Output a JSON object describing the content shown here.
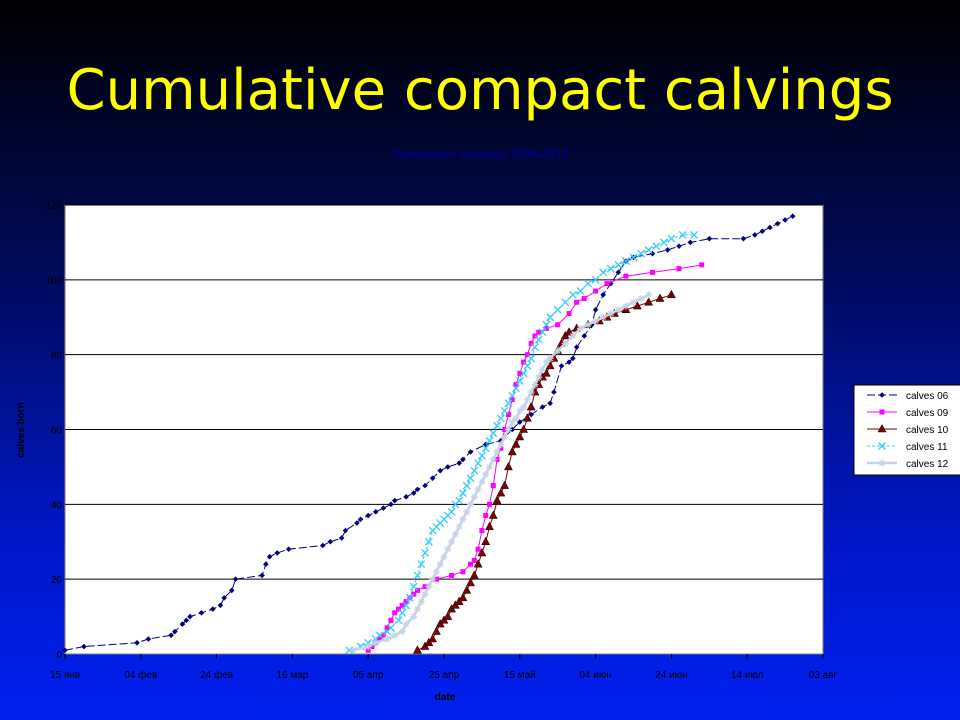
{
  "slide": {
    "title": "Cumulative compact calvings"
  },
  "chart_data": {
    "type": "line",
    "title": "Cumulative calvings 2006-2012",
    "xlabel": "date",
    "ylabel": "calves born",
    "x_tick_labels": [
      "15 янв",
      "04 фев",
      "24 фев",
      "16 мар",
      "05 апр",
      "25 апр",
      "15 май",
      "04 июн",
      "24 июн",
      "14 июл",
      "03 авг"
    ],
    "x_tick_days": [
      0,
      20,
      40,
      60,
      80,
      100,
      120,
      140,
      160,
      180,
      200
    ],
    "xlim": [
      0,
      200
    ],
    "ylim": [
      0,
      120
    ],
    "yticks": [
      0,
      20,
      40,
      60,
      80,
      100,
      120
    ],
    "grid": "horizontal",
    "legend_position": "right",
    "background": "#ffffff",
    "series": [
      {
        "name": "calves 06",
        "color": "#000080",
        "marker": "diamond",
        "dash": "8,3",
        "points": [
          [
            0,
            1
          ],
          [
            5,
            2
          ],
          [
            19,
            3
          ],
          [
            22,
            4
          ],
          [
            28,
            5
          ],
          [
            29,
            6
          ],
          [
            31,
            8
          ],
          [
            32,
            9
          ],
          [
            33,
            10
          ],
          [
            36,
            11
          ],
          [
            39,
            12
          ],
          [
            41,
            13
          ],
          [
            42,
            15
          ],
          [
            44,
            17
          ],
          [
            45,
            20
          ],
          [
            52,
            21
          ],
          [
            53,
            24
          ],
          [
            54,
            26
          ],
          [
            56,
            27
          ],
          [
            59,
            28
          ],
          [
            68,
            29
          ],
          [
            70,
            30
          ],
          [
            73,
            31
          ],
          [
            74,
            33
          ],
          [
            77,
            35
          ],
          [
            78,
            36
          ],
          [
            80,
            37
          ],
          [
            82,
            38
          ],
          [
            84,
            39
          ],
          [
            86,
            40
          ],
          [
            87,
            41
          ],
          [
            90,
            42
          ],
          [
            92,
            43
          ],
          [
            93,
            44
          ],
          [
            95,
            45
          ],
          [
            97,
            47
          ],
          [
            99,
            49
          ],
          [
            101,
            50
          ],
          [
            104,
            51
          ],
          [
            105,
            52
          ],
          [
            107,
            54
          ],
          [
            111,
            56
          ],
          [
            115,
            57
          ],
          [
            118,
            60
          ],
          [
            120,
            62
          ],
          [
            123,
            64
          ],
          [
            126,
            66
          ],
          [
            128,
            67
          ],
          [
            129,
            70
          ],
          [
            131,
            77
          ],
          [
            133,
            78
          ],
          [
            134,
            79
          ],
          [
            135,
            82
          ],
          [
            137,
            85
          ],
          [
            139,
            88
          ],
          [
            140,
            92
          ],
          [
            142,
            96
          ],
          [
            144,
            99
          ],
          [
            146,
            102
          ],
          [
            148,
            105
          ],
          [
            150,
            106
          ],
          [
            155,
            107
          ],
          [
            159,
            108
          ],
          [
            162,
            109
          ],
          [
            165,
            110
          ],
          [
            170,
            111
          ],
          [
            179,
            111
          ],
          [
            182,
            112
          ],
          [
            184,
            113
          ],
          [
            186,
            114
          ],
          [
            188,
            115
          ],
          [
            190,
            116
          ],
          [
            192,
            117
          ]
        ]
      },
      {
        "name": "calves 09",
        "color": "#ff00ff",
        "marker": "square",
        "dash": "",
        "points": [
          [
            80,
            1
          ],
          [
            81,
            2
          ],
          [
            82,
            3
          ],
          [
            83,
            4
          ],
          [
            84,
            5
          ],
          [
            85,
            7
          ],
          [
            86,
            9
          ],
          [
            87,
            11
          ],
          [
            88,
            12
          ],
          [
            89,
            13
          ],
          [
            90,
            14
          ],
          [
            91,
            15
          ],
          [
            92,
            16
          ],
          [
            93,
            17
          ],
          [
            95,
            18
          ],
          [
            98,
            20
          ],
          [
            102,
            21
          ],
          [
            105,
            22
          ],
          [
            107,
            24
          ],
          [
            108,
            25
          ],
          [
            109,
            28
          ],
          [
            110,
            33
          ],
          [
            111,
            37
          ],
          [
            112,
            40
          ],
          [
            113,
            45
          ],
          [
            114,
            52
          ],
          [
            115,
            55
          ],
          [
            116,
            60
          ],
          [
            117,
            64
          ],
          [
            118,
            68
          ],
          [
            119,
            72
          ],
          [
            120,
            75
          ],
          [
            121,
            78
          ],
          [
            122,
            80
          ],
          [
            123,
            83
          ],
          [
            124,
            85
          ],
          [
            125,
            86
          ],
          [
            127,
            87
          ],
          [
            130,
            88
          ],
          [
            133,
            91
          ],
          [
            135,
            94
          ],
          [
            137,
            95
          ],
          [
            140,
            97
          ],
          [
            143,
            99
          ],
          [
            148,
            101
          ],
          [
            155,
            102
          ],
          [
            162,
            103
          ],
          [
            168,
            104
          ]
        ]
      },
      {
        "name": "calves 10",
        "color": "#800000",
        "marker": "triangle",
        "dash": "",
        "points": [
          [
            93,
            1
          ],
          [
            95,
            2
          ],
          [
            96,
            3
          ],
          [
            97,
            4
          ],
          [
            98,
            6
          ],
          [
            99,
            8
          ],
          [
            100,
            9
          ],
          [
            101,
            10
          ],
          [
            102,
            12
          ],
          [
            103,
            13
          ],
          [
            104,
            14
          ],
          [
            105,
            15
          ],
          [
            106,
            17
          ],
          [
            107,
            19
          ],
          [
            108,
            21
          ],
          [
            109,
            24
          ],
          [
            110,
            27
          ],
          [
            111,
            30
          ],
          [
            112,
            34
          ],
          [
            113,
            37
          ],
          [
            114,
            41
          ],
          [
            115,
            43
          ],
          [
            116,
            45
          ],
          [
            117,
            50
          ],
          [
            118,
            54
          ],
          [
            119,
            56
          ],
          [
            120,
            58
          ],
          [
            121,
            60
          ],
          [
            122,
            63
          ],
          [
            123,
            66
          ],
          [
            124,
            70
          ],
          [
            125,
            72
          ],
          [
            126,
            74
          ],
          [
            127,
            75
          ],
          [
            128,
            77
          ],
          [
            129,
            79
          ],
          [
            130,
            81
          ],
          [
            131,
            83
          ],
          [
            132,
            85
          ],
          [
            133,
            86
          ],
          [
            135,
            87
          ],
          [
            138,
            88
          ],
          [
            141,
            89
          ],
          [
            143,
            90
          ],
          [
            145,
            91
          ],
          [
            148,
            92
          ],
          [
            151,
            93
          ],
          [
            154,
            94
          ],
          [
            157,
            95
          ],
          [
            160,
            96
          ]
        ]
      },
      {
        "name": "calves 11",
        "color": "#33ccff",
        "marker": "x",
        "dash": "3,2",
        "points": [
          [
            75,
            1
          ],
          [
            78,
            2
          ],
          [
            80,
            3
          ],
          [
            82,
            4
          ],
          [
            83,
            5
          ],
          [
            85,
            6
          ],
          [
            86,
            7
          ],
          [
            88,
            9
          ],
          [
            89,
            11
          ],
          [
            90,
            13
          ],
          [
            91,
            15
          ],
          [
            92,
            18
          ],
          [
            93,
            21
          ],
          [
            94,
            24
          ],
          [
            95,
            27
          ],
          [
            96,
            30
          ],
          [
            97,
            33
          ],
          [
            98,
            34
          ],
          [
            99,
            35
          ],
          [
            100,
            36
          ],
          [
            101,
            37
          ],
          [
            102,
            38
          ],
          [
            103,
            40
          ],
          [
            104,
            41
          ],
          [
            105,
            43
          ],
          [
            106,
            45
          ],
          [
            107,
            47
          ],
          [
            108,
            49
          ],
          [
            109,
            51
          ],
          [
            110,
            53
          ],
          [
            111,
            55
          ],
          [
            112,
            57
          ],
          [
            113,
            59
          ],
          [
            114,
            61
          ],
          [
            115,
            63
          ],
          [
            116,
            65
          ],
          [
            117,
            67
          ],
          [
            118,
            69
          ],
          [
            119,
            71
          ],
          [
            120,
            73
          ],
          [
            121,
            75
          ],
          [
            122,
            77
          ],
          [
            123,
            79
          ],
          [
            124,
            82
          ],
          [
            125,
            84
          ],
          [
            126,
            86
          ],
          [
            127,
            88
          ],
          [
            128,
            90
          ],
          [
            130,
            92
          ],
          [
            132,
            94
          ],
          [
            134,
            96
          ],
          [
            136,
            97
          ],
          [
            138,
            99
          ],
          [
            140,
            100
          ],
          [
            142,
            102
          ],
          [
            144,
            103
          ],
          [
            146,
            104
          ],
          [
            148,
            105
          ],
          [
            150,
            106
          ],
          [
            152,
            107
          ],
          [
            154,
            108
          ],
          [
            156,
            109
          ],
          [
            158,
            110
          ],
          [
            160,
            111
          ],
          [
            163,
            112
          ],
          [
            166,
            112
          ]
        ]
      },
      {
        "name": "calves 12",
        "color": "#c8d2e6",
        "marker": "star",
        "dash": "",
        "points": [
          [
            76,
            1
          ],
          [
            80,
            2
          ],
          [
            82,
            3
          ],
          [
            85,
            4
          ],
          [
            87,
            5
          ],
          [
            89,
            6
          ],
          [
            90,
            8
          ],
          [
            92,
            10
          ],
          [
            93,
            12
          ],
          [
            94,
            14
          ],
          [
            95,
            16
          ],
          [
            96,
            18
          ],
          [
            97,
            20
          ],
          [
            98,
            22
          ],
          [
            99,
            24
          ],
          [
            100,
            26
          ],
          [
            101,
            28
          ],
          [
            102,
            30
          ],
          [
            103,
            32
          ],
          [
            104,
            34
          ],
          [
            105,
            36
          ],
          [
            106,
            38
          ],
          [
            107,
            40
          ],
          [
            108,
            42
          ],
          [
            109,
            44
          ],
          [
            110,
            46
          ],
          [
            111,
            48
          ],
          [
            112,
            50
          ],
          [
            113,
            52
          ],
          [
            114,
            54
          ],
          [
            115,
            56
          ],
          [
            116,
            58
          ],
          [
            117,
            60
          ],
          [
            118,
            62
          ],
          [
            119,
            63
          ],
          [
            120,
            65
          ],
          [
            121,
            66
          ],
          [
            122,
            68
          ],
          [
            123,
            70
          ],
          [
            124,
            72
          ],
          [
            125,
            74
          ],
          [
            126,
            76
          ],
          [
            127,
            78
          ],
          [
            128,
            79
          ],
          [
            130,
            81
          ],
          [
            132,
            83
          ],
          [
            134,
            85
          ],
          [
            136,
            87
          ],
          [
            138,
            88
          ],
          [
            140,
            89
          ],
          [
            142,
            90
          ],
          [
            144,
            91
          ],
          [
            146,
            92
          ],
          [
            148,
            93
          ],
          [
            150,
            94
          ],
          [
            152,
            95
          ],
          [
            154,
            96
          ]
        ]
      }
    ]
  }
}
